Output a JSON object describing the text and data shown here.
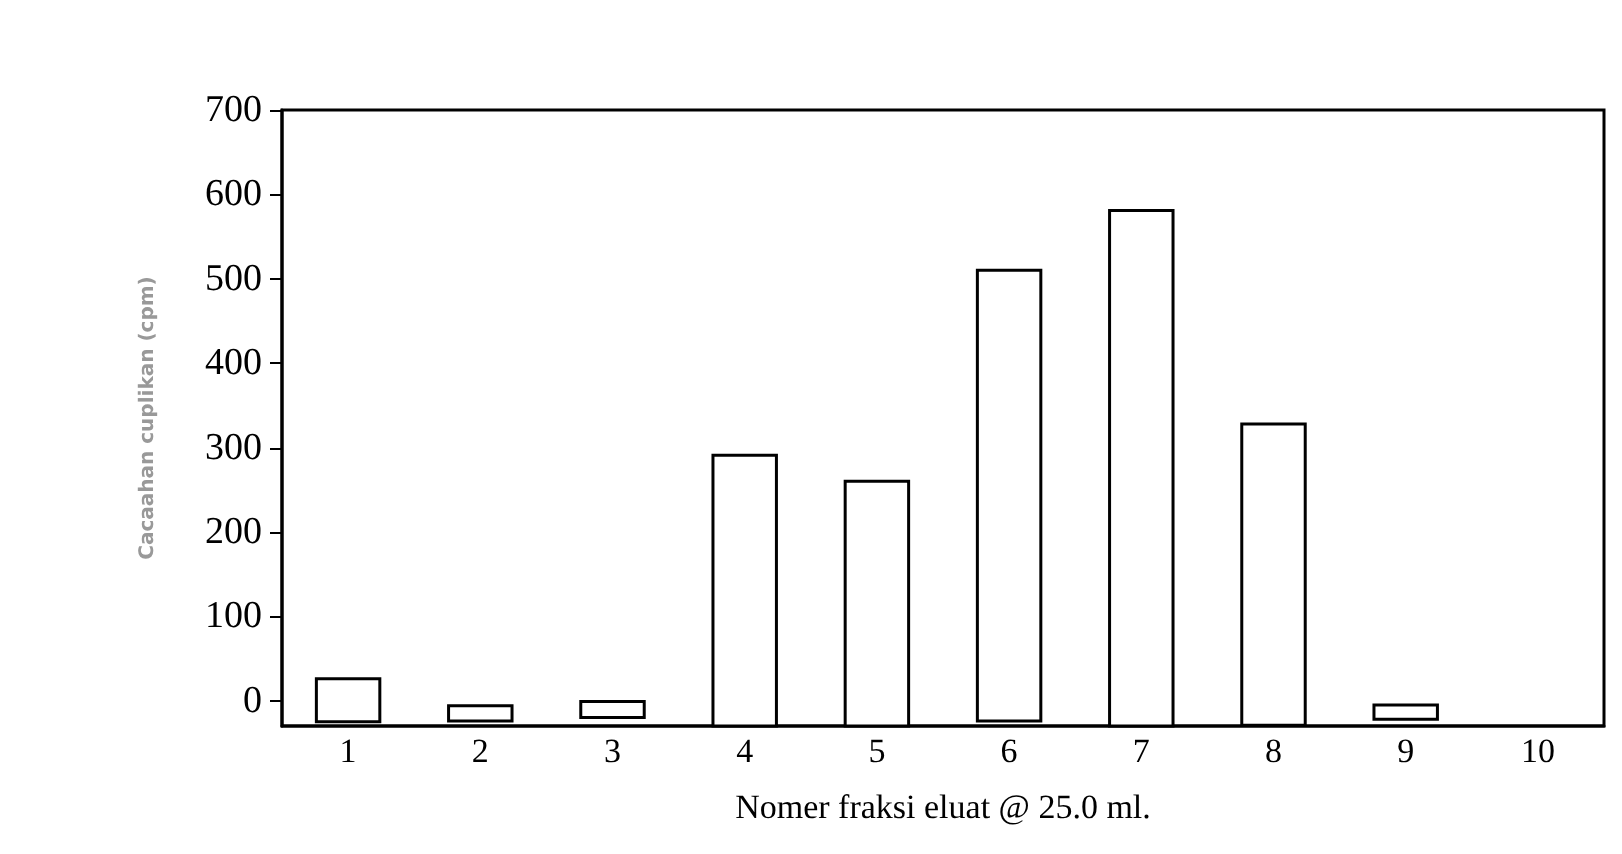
{
  "chart_data": {
    "type": "bar",
    "xlabel": "Nomer fraksi eluat @ 25.0 ml.",
    "ylabel": "Cacaahan cuplikan (cpm)",
    "categories": [
      "1",
      "2",
      "3",
      "4",
      "5",
      "6",
      "7",
      "8",
      "9",
      "10"
    ],
    "base": [
      -25,
      -24,
      -20,
      -30,
      -30,
      -24,
      -30,
      -29,
      -22,
      null
    ],
    "values": [
      51,
      18,
      19,
      321,
      290,
      534,
      611,
      357,
      17,
      null
    ],
    "color": "#ffffff",
    "ylim": [
      -30,
      700
    ],
    "yticks": [
      0,
      100,
      200,
      300,
      400,
      500,
      600,
      700
    ],
    "grid": false
  }
}
